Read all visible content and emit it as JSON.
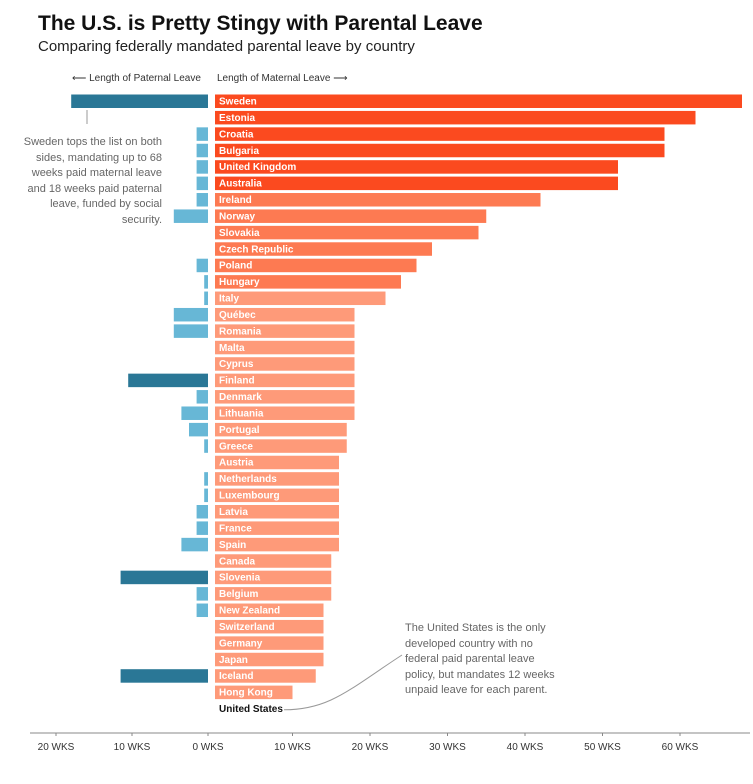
{
  "title": "The U.S. is Pretty Stingy with Parental Leave",
  "subtitle": "Comparing federally mandated parental leave by country",
  "paternal_label": "Length of Paternal Leave",
  "maternal_label": "Length of Maternal Leave",
  "annotations": {
    "sweden": "Sweden tops the list on both sides, mandating up to 68 weeks paid maternal leave and 18 weeks paid paternal leave, funded by social security.",
    "united_states": "The United States is the only developed country with no federal paid parental leave policy, but mandates 12 weeks unpaid leave for each parent."
  },
  "colors": {
    "maternal_dark": "#fb4a1f",
    "maternal_mid": "#fd7a52",
    "maternal_light": "#fe9a79",
    "paternal_dark": "#2a7796",
    "paternal_light": "#67b7d6"
  },
  "chart_data": {
    "type": "bar",
    "orientation": "horizontal-diverging",
    "xlabel": "",
    "ylabel": "",
    "x_ticks": [
      "20 WKS",
      "10 WKS",
      "0 WKS",
      "10 WKS",
      "20 WKS",
      "30 WKS",
      "40 WKS",
      "50 WKS",
      "60 WKS"
    ],
    "x_tick_values": [
      -20,
      -10,
      0,
      10,
      20,
      30,
      40,
      50,
      60
    ],
    "xlim": [
      -20,
      68
    ],
    "categories": [
      "Sweden",
      "Estonia",
      "Croatia",
      "Bulgaria",
      "United Kingdom",
      "Australia",
      "Ireland",
      "Norway",
      "Slovakia",
      "Czech Republic",
      "Poland",
      "Hungary",
      "Italy",
      "Québec",
      "Romania",
      "Malta",
      "Cyprus",
      "Finland",
      "Denmark",
      "Lithuania",
      "Portugal",
      "Greece",
      "Austria",
      "Netherlands",
      "Luxembourg",
      "Latvia",
      "France",
      "Spain",
      "Canada",
      "Slovenia",
      "Belgium",
      "New Zealand",
      "Switzerland",
      "Germany",
      "Japan",
      "Iceland",
      "Hong Kong",
      "United States"
    ],
    "series": [
      {
        "values": [
          68,
          62,
          58,
          58,
          52,
          52,
          42,
          35,
          34,
          28,
          26,
          24,
          22,
          18,
          18,
          18,
          18,
          18,
          18,
          18,
          17,
          17,
          16,
          16,
          16,
          16,
          16,
          16,
          15,
          15,
          15,
          14,
          14,
          14,
          14,
          13,
          10,
          0
        ]
      },
      {
        "values": [
          18,
          0,
          1.5,
          1.5,
          1.5,
          1.5,
          1.5,
          4.5,
          0,
          0,
          1.5,
          0.5,
          0.5,
          4.5,
          4.5,
          0,
          0,
          10.5,
          1.5,
          3.5,
          2.5,
          0.5,
          0,
          0.5,
          0.5,
          1.5,
          1.5,
          3.5,
          0,
          11.5,
          1.5,
          1.5,
          0,
          0,
          0,
          11.5,
          0,
          0
        ]
      }
    ]
  }
}
